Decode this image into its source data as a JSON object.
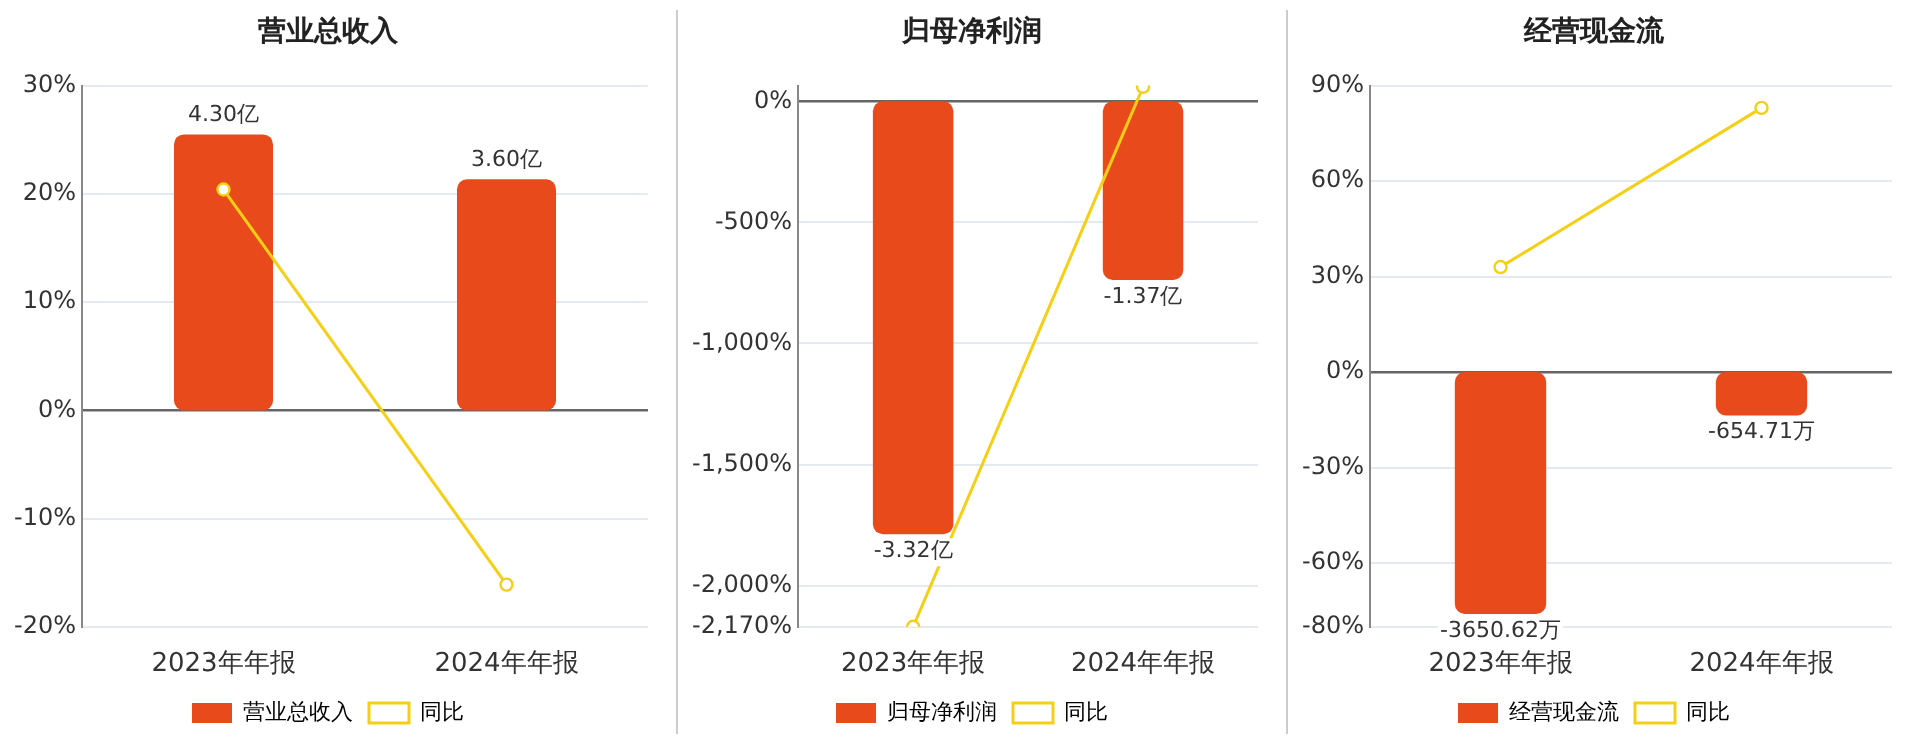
{
  "chart_data": [
    {
      "type": "bar",
      "title": "营业总收入",
      "categories": [
        "2023年年报",
        "2024年年报"
      ],
      "series": [
        {
          "name": "营业总收入",
          "color": "#e84a1c",
          "values": [
            4.3,
            3.6
          ],
          "axis": "y2",
          "value_labels": [
            "4.30亿",
            "3.60亿"
          ]
        },
        {
          "name": "同比",
          "type": "line",
          "color": "#f5cf14",
          "values": [
            20.4,
            -16.1
          ]
        }
      ],
      "ylim": [
        -20,
        30
      ],
      "yticks": [
        {
          "value": -20,
          "label": "-20%"
        },
        {
          "value": -10,
          "label": "-10%"
        },
        {
          "value": 0,
          "label": "0%"
        },
        {
          "value": 10,
          "label": "10%"
        },
        {
          "value": 20,
          "label": "20%"
        },
        {
          "value": 30,
          "label": "30%"
        }
      ],
      "y2lim": [
        -3.37,
        5.06
      ],
      "grid": "y",
      "legend": "bottom",
      "marker": "circle"
    },
    {
      "type": "bar",
      "title": "归母净利润",
      "categories": [
        "2023年年报",
        "2024年年报"
      ],
      "series": [
        {
          "name": "归母净利润",
          "color": "#e84a1c",
          "values": [
            -3.32,
            -1.37
          ],
          "axis": "y2",
          "value_labels": [
            "-3.32亿",
            "-1.37亿"
          ]
        },
        {
          "name": "同比",
          "type": "line",
          "color": "#f5cf14",
          "values": [
            -2170,
            60
          ]
        }
      ],
      "ylim": [
        -2170,
        65
      ],
      "yticks": [
        {
          "value": -2170,
          "label": "-2,170%"
        },
        {
          "value": -2000,
          "label": "-2,000%"
        },
        {
          "value": -1500,
          "label": "-1,500%"
        },
        {
          "value": -1000,
          "label": "-1,000%"
        },
        {
          "value": -500,
          "label": "-500%"
        },
        {
          "value": 0,
          "label": "0%"
        }
      ],
      "y2lim": [
        -4.03,
        0.12
      ],
      "grid": "y",
      "legend": "bottom",
      "marker": "circle"
    },
    {
      "type": "bar",
      "title": "经营现金流",
      "categories": [
        "2023年年报",
        "2024年年报"
      ],
      "series": [
        {
          "name": "经营现金流",
          "color": "#e84a1c",
          "values": [
            -3650.62,
            -654.71
          ],
          "axis": "y2",
          "value_labels": [
            "-3650.62万",
            "-654.71万"
          ]
        },
        {
          "name": "同比",
          "type": "line",
          "color": "#f5cf14",
          "values": [
            33,
            83
          ]
        }
      ],
      "ylim": [
        -80,
        90
      ],
      "yticks": [
        {
          "value": -80,
          "label": "-80%"
        },
        {
          "value": -60,
          "label": "-60%"
        },
        {
          "value": -30,
          "label": "-30%"
        },
        {
          "value": 0,
          "label": "0%"
        },
        {
          "value": 30,
          "label": "30%"
        },
        {
          "value": 60,
          "label": "60%"
        },
        {
          "value": 90,
          "label": "90%"
        }
      ],
      "y2lim": [
        -3843,
        4323
      ],
      "grid": "y",
      "legend": "bottom",
      "marker": "circle"
    }
  ]
}
